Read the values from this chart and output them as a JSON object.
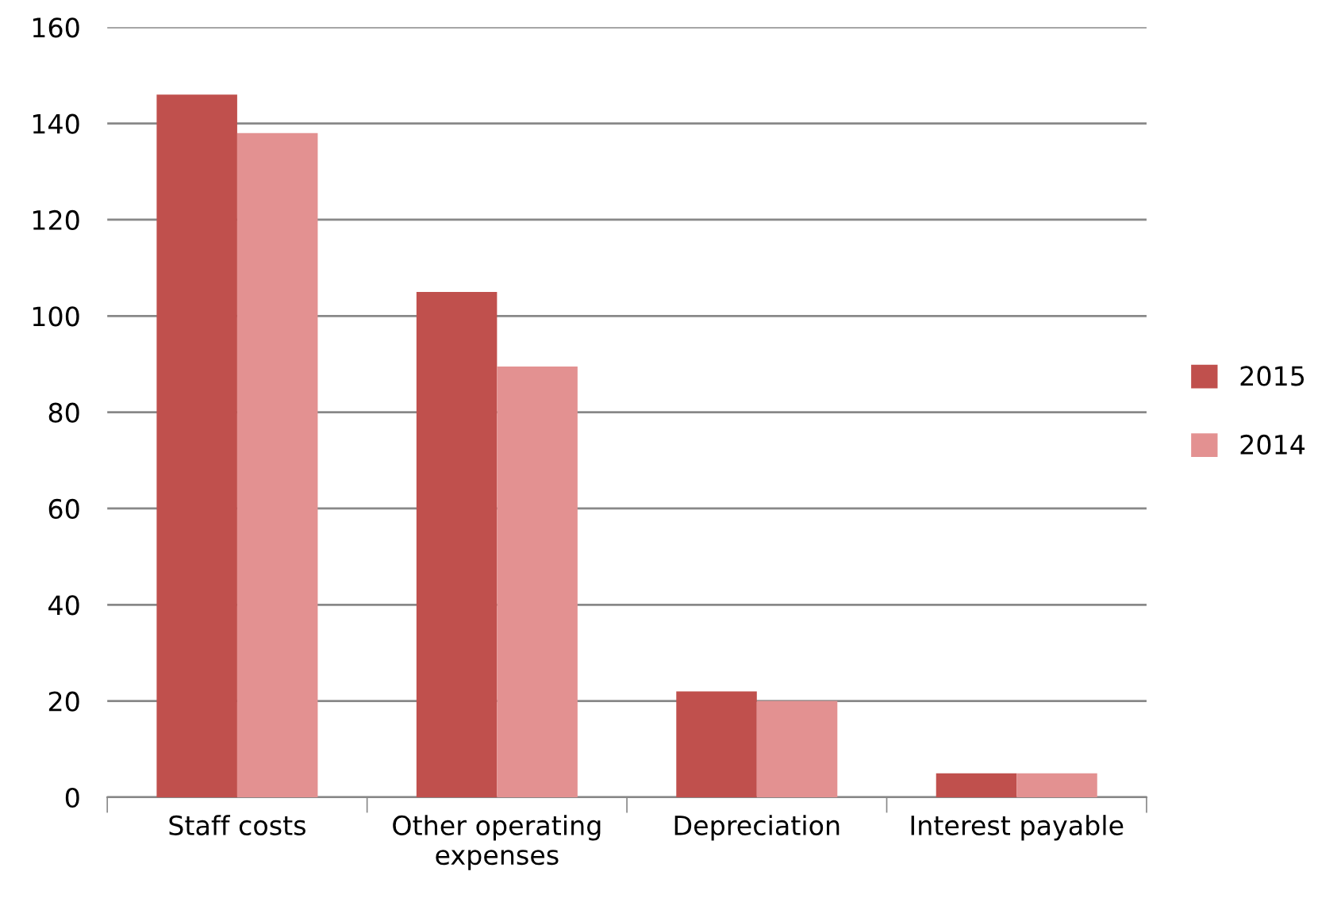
{
  "chart_data": {
    "type": "bar",
    "categories": [
      "Staff costs",
      "Other operating\nexpenses",
      "Depreciation",
      "Interest payable"
    ],
    "series": [
      {
        "name": "2015",
        "color": "#c0504d",
        "values": [
          146,
          105,
          22,
          5
        ]
      },
      {
        "name": "2014",
        "color": "#e39191",
        "values": [
          138,
          89.5,
          20,
          5
        ]
      }
    ],
    "ylim": [
      0,
      160
    ],
    "yticks": [
      0,
      20,
      40,
      60,
      80,
      100,
      120,
      140,
      160
    ],
    "grid": "y",
    "legend": "right"
  }
}
